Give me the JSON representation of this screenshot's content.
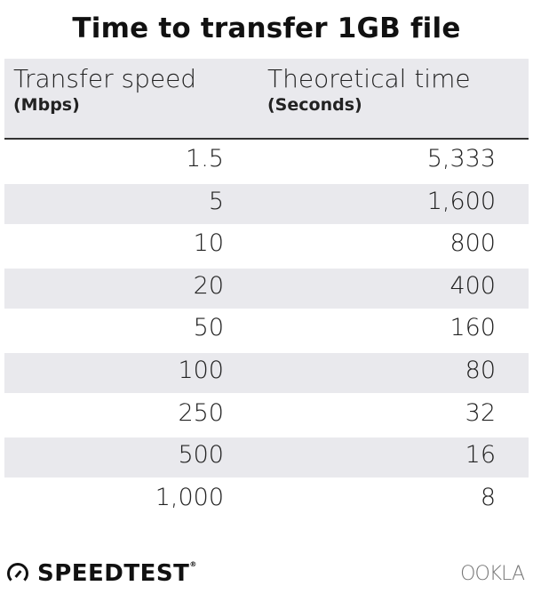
{
  "title": "Time to transfer 1GB file",
  "chart_data": {
    "type": "table",
    "title": "Time to transfer 1GB file",
    "columns": [
      {
        "label": "Transfer speed",
        "unit": "(Mbps)"
      },
      {
        "label": "Theoretical time",
        "unit": "(Seconds)"
      }
    ],
    "rows": [
      [
        "1.5",
        "5,333"
      ],
      [
        "5",
        "1,600"
      ],
      [
        "10",
        "800"
      ],
      [
        "20",
        "400"
      ],
      [
        "50",
        "160"
      ],
      [
        "100",
        "80"
      ],
      [
        "250",
        "32"
      ],
      [
        "500",
        "16"
      ],
      [
        "1,000",
        "8"
      ]
    ]
  },
  "colors": {
    "stripe": "#e9e9ed",
    "text": "#222222",
    "rule": "#333333"
  },
  "logos": {
    "left": "SPEEDTEST",
    "right": "OOKLA",
    "left_icon": "speedometer-gauge-icon"
  }
}
